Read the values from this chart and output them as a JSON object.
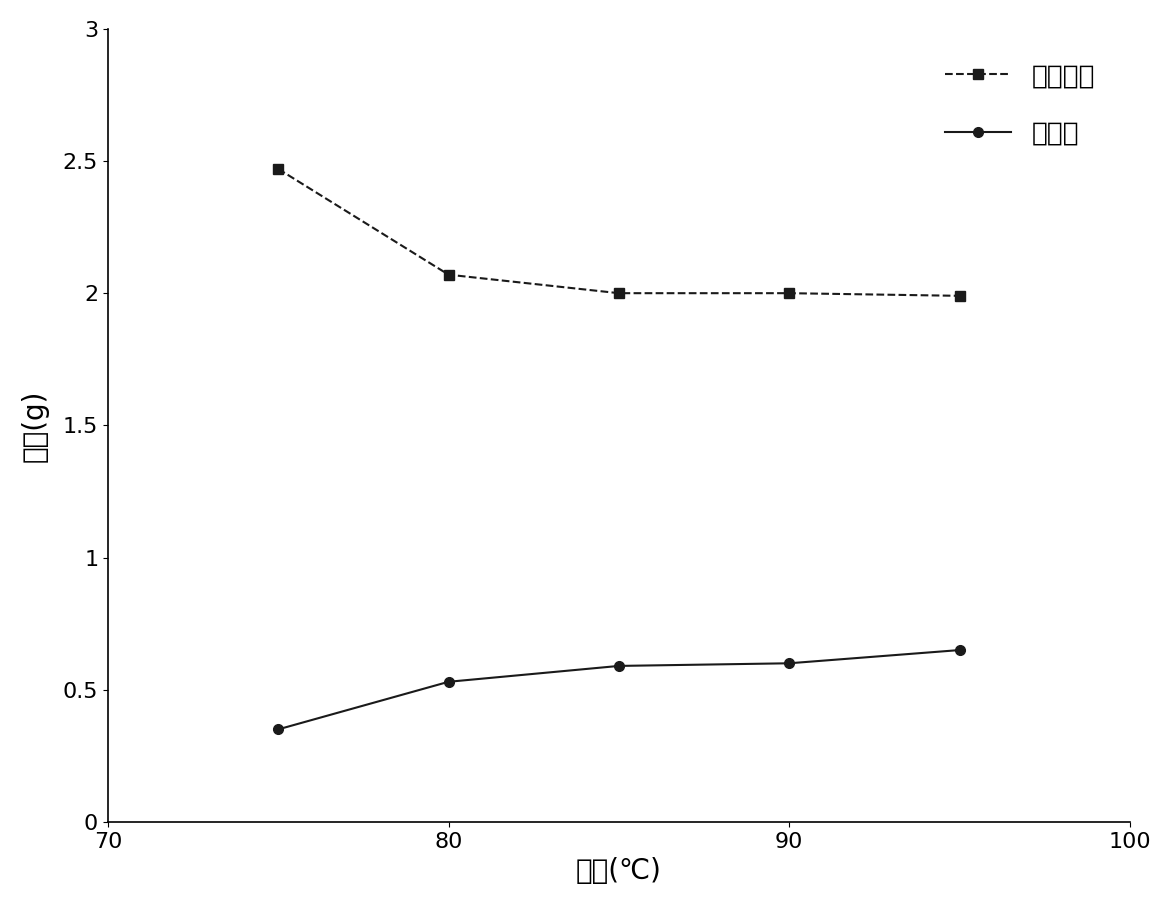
{
  "series1_label": "剩余固体",
  "series2_label": "木质素",
  "series1_x": [
    75,
    80,
    85,
    90,
    95
  ],
  "series1_y": [
    2.47,
    2.07,
    2.0,
    2.0,
    1.99
  ],
  "series2_x": [
    75,
    80,
    85,
    90,
    95
  ],
  "series2_y": [
    0.35,
    0.53,
    0.59,
    0.6,
    0.65
  ],
  "xlabel": "温度(℃)",
  "ylabel": "质量(g)",
  "xlim": [
    70,
    100
  ],
  "ylim": [
    0,
    3
  ],
  "xticks": [
    70,
    80,
    90,
    100
  ],
  "yticks": [
    0,
    0.5,
    1.0,
    1.5,
    2.0,
    2.5,
    3.0
  ],
  "ytick_labels": [
    "0",
    "0.5",
    "1",
    "1.5",
    "2",
    "2.5",
    "3"
  ],
  "xtick_labels": [
    "70",
    "80",
    "90",
    "100"
  ],
  "series1_color": "#1a1a1a",
  "series2_color": "#1a1a1a",
  "series1_linestyle": "--",
  "series2_linestyle": "-",
  "series1_marker": "s",
  "series2_marker": "o",
  "marker_size": 7,
  "linewidth": 1.5,
  "legend_loc": "upper right",
  "font_size_label": 20,
  "font_size_tick": 16,
  "font_size_legend": 19,
  "figure_width": 11.72,
  "figure_height": 9.06,
  "dpi": 100
}
